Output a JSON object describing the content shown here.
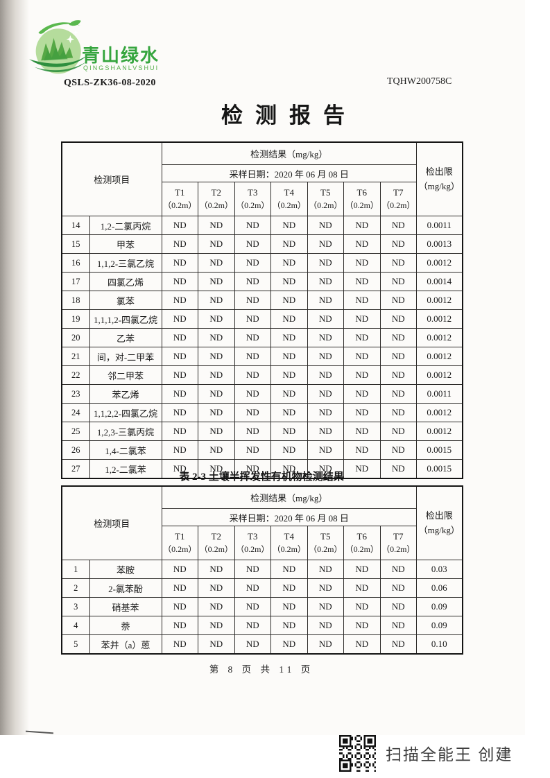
{
  "page": {
    "doc_code_left": "QSLS-ZK36-08-2020",
    "doc_code_right": "TQHW200758C",
    "title": "检测报告",
    "footer": "第 8 页 共 11 页",
    "scanner_note": "扫描全能王 创建"
  },
  "logo": {
    "name_cn": "青山绿水",
    "name_en": "QINGSHANLVSHUI",
    "color_dark_green": "#2e8f3e",
    "color_mid_green": "#55a845",
    "color_light_green": "#b5dc9c",
    "color_text_green": "#35a53e"
  },
  "table1": {
    "header": {
      "item_label": "检测项目",
      "result_label": "检测结果（mg/kg）",
      "date_label": "采样日期：2020 年 06 月 08 日",
      "limit_label": "检出限",
      "limit_unit": "（mg/kg）",
      "columns": [
        {
          "id": "T1",
          "depth": "（0.2m）"
        },
        {
          "id": "T2",
          "depth": "（0.2m）"
        },
        {
          "id": "T3",
          "depth": "（0.2m）"
        },
        {
          "id": "T4",
          "depth": "（0.2m）"
        },
        {
          "id": "T5",
          "depth": "（0.2m）"
        },
        {
          "id": "T6",
          "depth": "（0.2m）"
        },
        {
          "id": "T7",
          "depth": "（0.2m）"
        }
      ]
    },
    "rows": [
      {
        "no": "14",
        "name": "1,2-二氯丙烷",
        "values": [
          "ND",
          "ND",
          "ND",
          "ND",
          "ND",
          "ND",
          "ND"
        ],
        "limit": "0.0011"
      },
      {
        "no": "15",
        "name": "甲苯",
        "values": [
          "ND",
          "ND",
          "ND",
          "ND",
          "ND",
          "ND",
          "ND"
        ],
        "limit": "0.0013"
      },
      {
        "no": "16",
        "name": "1,1,2-三氯乙烷",
        "values": [
          "ND",
          "ND",
          "ND",
          "ND",
          "ND",
          "ND",
          "ND"
        ],
        "limit": "0.0012"
      },
      {
        "no": "17",
        "name": "四氯乙烯",
        "values": [
          "ND",
          "ND",
          "ND",
          "ND",
          "ND",
          "ND",
          "ND"
        ],
        "limit": "0.0014"
      },
      {
        "no": "18",
        "name": "氯苯",
        "values": [
          "ND",
          "ND",
          "ND",
          "ND",
          "ND",
          "ND",
          "ND"
        ],
        "limit": "0.0012"
      },
      {
        "no": "19",
        "name": "1,1,1,2-四氯乙烷",
        "values": [
          "ND",
          "ND",
          "ND",
          "ND",
          "ND",
          "ND",
          "ND"
        ],
        "limit": "0.0012"
      },
      {
        "no": "20",
        "name": "乙苯",
        "values": [
          "ND",
          "ND",
          "ND",
          "ND",
          "ND",
          "ND",
          "ND"
        ],
        "limit": "0.0012"
      },
      {
        "no": "21",
        "name": "间，对-二甲苯",
        "values": [
          "ND",
          "ND",
          "ND",
          "ND",
          "ND",
          "ND",
          "ND"
        ],
        "limit": "0.0012"
      },
      {
        "no": "22",
        "name": "邻二甲苯",
        "values": [
          "ND",
          "ND",
          "ND",
          "ND",
          "ND",
          "ND",
          "ND"
        ],
        "limit": "0.0012"
      },
      {
        "no": "23",
        "name": "苯乙烯",
        "values": [
          "ND",
          "ND",
          "ND",
          "ND",
          "ND",
          "ND",
          "ND"
        ],
        "limit": "0.0011"
      },
      {
        "no": "24",
        "name": "1,1,2,2-四氯乙烷",
        "values": [
          "ND",
          "ND",
          "ND",
          "ND",
          "ND",
          "ND",
          "ND"
        ],
        "limit": "0.0012"
      },
      {
        "no": "25",
        "name": "1,2,3-三氯丙烷",
        "values": [
          "ND",
          "ND",
          "ND",
          "ND",
          "ND",
          "ND",
          "ND"
        ],
        "limit": "0.0012"
      },
      {
        "no": "26",
        "name": "1,4-二氯苯",
        "values": [
          "ND",
          "ND",
          "ND",
          "ND",
          "ND",
          "ND",
          "ND"
        ],
        "limit": "0.0015"
      },
      {
        "no": "27",
        "name": "1,2-二氯苯",
        "values": [
          "ND",
          "ND",
          "ND",
          "ND",
          "ND",
          "ND",
          "ND"
        ],
        "limit": "0.0015"
      }
    ]
  },
  "table2_title": "表 2-3 土壤半挥发性有机物检测结果",
  "table2": {
    "header": {
      "item_label": "检测项目",
      "result_label": "检测结果（mg/kg）",
      "date_label": "采样日期：2020 年 06 月 08 日",
      "limit_label": "检出限",
      "limit_unit": "（mg/kg）",
      "columns": [
        {
          "id": "T1",
          "depth": "（0.2m）"
        },
        {
          "id": "T2",
          "depth": "（0.2m）"
        },
        {
          "id": "T3",
          "depth": "（0.2m）"
        },
        {
          "id": "T4",
          "depth": "（0.2m）"
        },
        {
          "id": "T5",
          "depth": "（0.2m）"
        },
        {
          "id": "T6",
          "depth": "（0.2m）"
        },
        {
          "id": "T7",
          "depth": "（0.2m）"
        }
      ]
    },
    "rows": [
      {
        "no": "1",
        "name": "苯胺",
        "values": [
          "ND",
          "ND",
          "ND",
          "ND",
          "ND",
          "ND",
          "ND"
        ],
        "limit": "0.03"
      },
      {
        "no": "2",
        "name": "2-氯苯酚",
        "values": [
          "ND",
          "ND",
          "ND",
          "ND",
          "ND",
          "ND",
          "ND"
        ],
        "limit": "0.06"
      },
      {
        "no": "3",
        "name": "硝基苯",
        "values": [
          "ND",
          "ND",
          "ND",
          "ND",
          "ND",
          "ND",
          "ND"
        ],
        "limit": "0.09"
      },
      {
        "no": "4",
        "name": "萘",
        "values": [
          "ND",
          "ND",
          "ND",
          "ND",
          "ND",
          "ND",
          "ND"
        ],
        "limit": "0.09"
      },
      {
        "no": "5",
        "name": "苯并（a）蒽",
        "values": [
          "ND",
          "ND",
          "ND",
          "ND",
          "ND",
          "ND",
          "ND"
        ],
        "limit": "0.10"
      }
    ]
  }
}
